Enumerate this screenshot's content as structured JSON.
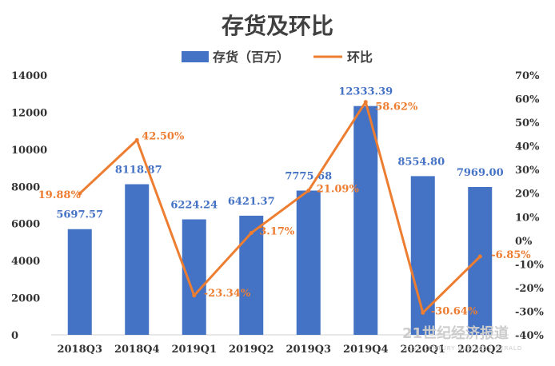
{
  "chart_data": {
    "type": "bar",
    "title": "存货及环比",
    "categories": [
      "2018Q3",
      "2018Q4",
      "2019Q1",
      "2019Q2",
      "2019Q3",
      "2019Q4",
      "2020Q1",
      "2020Q2"
    ],
    "series": [
      {
        "name": "存货（百万）",
        "type": "bar",
        "axis": "left",
        "color": "#4472C4",
        "values": [
          5697.57,
          8118.87,
          6224.24,
          6421.37,
          7775.68,
          12333.39,
          8554.8,
          7969.0
        ],
        "labels": [
          "5697.57",
          "8118.87",
          "6224.24",
          "6421.37",
          "7775.68",
          "12333.39",
          "8554.80",
          "7969.00"
        ]
      },
      {
        "name": "环比",
        "type": "line",
        "axis": "right",
        "color": "#ED7D31",
        "values": [
          19.88,
          42.5,
          -23.34,
          3.17,
          21.09,
          58.62,
          -30.64,
          -6.85
        ],
        "labels": [
          "19.88%",
          "42.50%",
          "-23.34%",
          "3.17%",
          "21.09%",
          "58.62%",
          "-30.64%",
          "-6.85%"
        ]
      }
    ],
    "y_left": {
      "range": [
        0,
        14000
      ],
      "ticks": [
        "0",
        "2000",
        "4000",
        "6000",
        "8000",
        "10000",
        "12000",
        "14000"
      ]
    },
    "y_right": {
      "range": [
        -40,
        70
      ],
      "ticks": [
        "-40%",
        "-30%",
        "-20%",
        "-10%",
        "0%",
        "10%",
        "20%",
        "30%",
        "40%",
        "50%",
        "60%",
        "70%"
      ]
    },
    "legend_position": "top-center",
    "grid": false
  },
  "watermark": {
    "text": "21世纪经济报道",
    "subtext": "21ST CENTURY BUSINESS HERALD"
  }
}
